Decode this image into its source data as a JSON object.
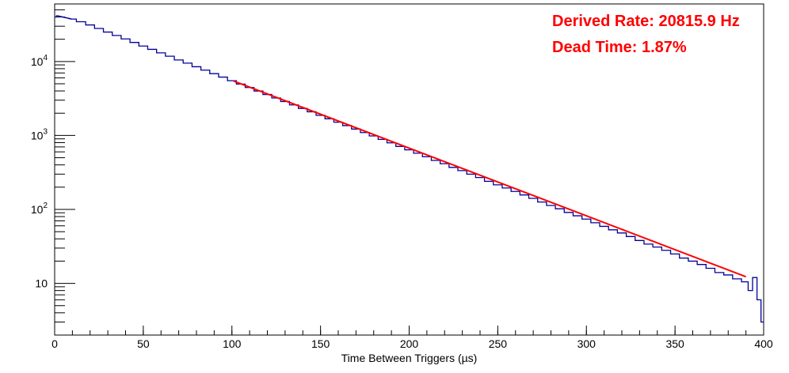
{
  "chart_data": {
    "type": "histogram",
    "xlabel": "Time Between Triggers (µs)",
    "ylabel": "",
    "xlim": [
      0,
      400
    ],
    "ylim": [
      2,
      60000
    ],
    "y_scale": "log",
    "grid": false,
    "x_ticks": [
      0,
      50,
      100,
      150,
      200,
      250,
      300,
      350,
      400
    ],
    "y_ticks": [
      {
        "value": 10,
        "label": "10"
      },
      {
        "value": 100,
        "label": "10^2"
      },
      {
        "value": 1000,
        "label": "10^3"
      },
      {
        "value": 10000,
        "label": "10^4"
      }
    ],
    "annotations": [
      {
        "text": "Derived Rate: 20815.9 Hz",
        "color": "#ff0000"
      },
      {
        "text": "Dead Time: 1.87%",
        "color": "#ff0000"
      }
    ],
    "series": [
      {
        "color": "#000099",
        "style": "step",
        "bin_width": 1,
        "x": [
          0.5,
          1.5,
          2.5,
          3.5,
          4.5,
          5.5,
          6.5,
          7.5,
          8.5,
          9.5,
          15,
          20,
          25,
          30,
          35,
          40,
          45,
          50,
          55,
          60,
          65,
          70,
          75,
          80,
          85,
          90,
          95,
          100,
          105,
          110,
          115,
          120,
          125,
          130,
          135,
          140,
          145,
          150,
          155,
          160,
          165,
          170,
          175,
          180,
          185,
          190,
          195,
          200,
          205,
          210,
          215,
          220,
          225,
          230,
          235,
          240,
          245,
          250,
          255,
          260,
          265,
          270,
          275,
          280,
          285,
          290,
          295,
          300,
          305,
          310,
          315,
          320,
          325,
          330,
          335,
          340,
          345,
          350,
          355,
          360,
          365,
          370,
          375,
          380,
          385,
          390,
          392.5,
          395,
          397.5,
          399.5
        ],
        "y": [
          40000,
          41500,
          41000,
          40500,
          40000,
          39500,
          39000,
          38500,
          38000,
          37500,
          34500,
          31200,
          28000,
          25000,
          22500,
          20200,
          18100,
          16200,
          14600,
          13100,
          11800,
          10500,
          9500,
          8500,
          7650,
          6850,
          6150,
          5500,
          4950,
          4450,
          3990,
          3580,
          3210,
          2880,
          2590,
          2320,
          2090,
          1870,
          1680,
          1510,
          1360,
          1220,
          1095,
          985,
          885,
          795,
          710,
          640,
          575,
          515,
          460,
          415,
          370,
          335,
          300,
          270,
          240,
          215,
          195,
          175,
          157,
          141,
          126,
          113,
          102,
          91,
          82,
          74,
          66,
          59,
          53,
          48,
          43,
          38,
          34,
          31,
          28,
          25,
          22,
          20,
          18,
          16,
          14,
          13,
          11.5,
          10.5,
          8,
          12,
          6,
          3
        ]
      },
      {
        "color": "#ff0000",
        "style": "line",
        "x": [
          101,
          390
        ],
        "y": [
          5440,
          12.3
        ]
      }
    ]
  }
}
